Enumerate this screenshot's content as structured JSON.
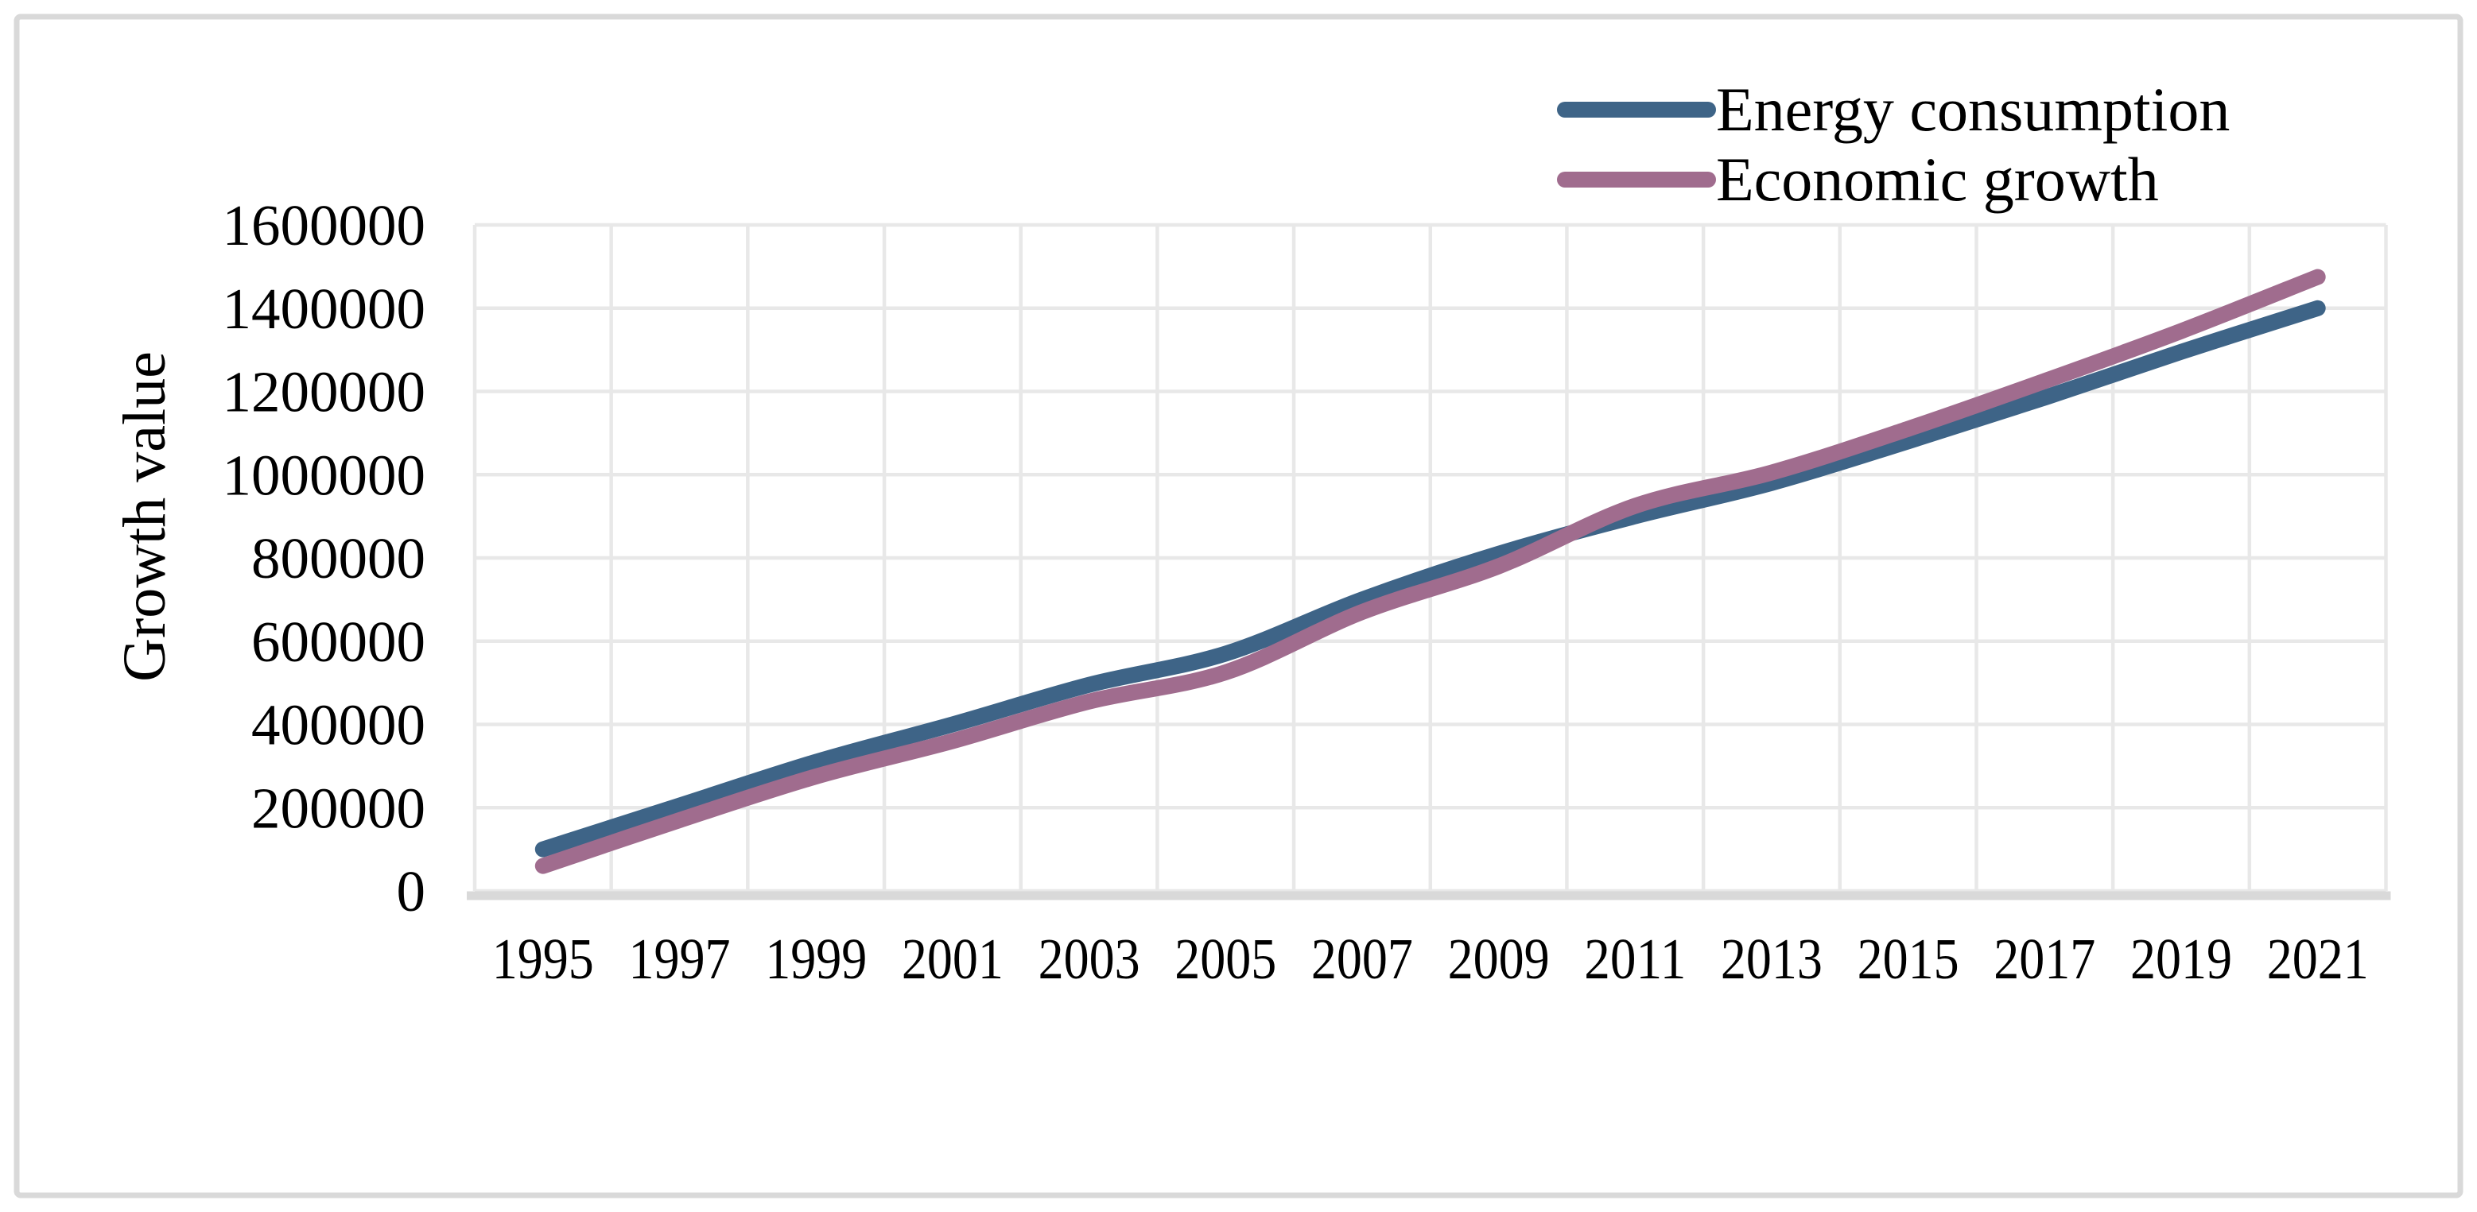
{
  "chart_data": {
    "type": "line",
    "title": "",
    "xlabel": "",
    "ylabel": "Growth value",
    "categories": [
      "1995",
      "1997",
      "1999",
      "2001",
      "2003",
      "2005",
      "2007",
      "2009",
      "2011",
      "2013",
      "2015",
      "2017",
      "2019",
      "2021"
    ],
    "series": [
      {
        "name": "Energy consumption",
        "color": "#3E6487",
        "values": [
          100000,
          205000,
          310000,
          400000,
          495000,
          570000,
          700000,
          810000,
          900000,
          980000,
          1080000,
          1185000,
          1295000,
          1400000
        ]
      },
      {
        "name": "Economic growth",
        "color": "#A06C8E",
        "values": [
          60000,
          170000,
          275000,
          360000,
          455000,
          525000,
          670000,
          780000,
          925000,
          1005000,
          1110000,
          1225000,
          1345000,
          1475000
        ]
      }
    ],
    "ylim": [
      0,
      1600000
    ],
    "ytick_step": 200000,
    "ytick_labels": [
      "1600000",
      "1400000",
      "1200000",
      "1000000",
      "800000",
      "600000",
      "400000",
      "200000",
      "0"
    ],
    "grid": true,
    "smooth": true,
    "legend_position": "top-right",
    "colors": {
      "gridline": "#E8E8E8",
      "axis_line": "#D9D9D9",
      "border": "#D9D9D9",
      "text": "#000000",
      "background": "#FFFFFF"
    }
  }
}
